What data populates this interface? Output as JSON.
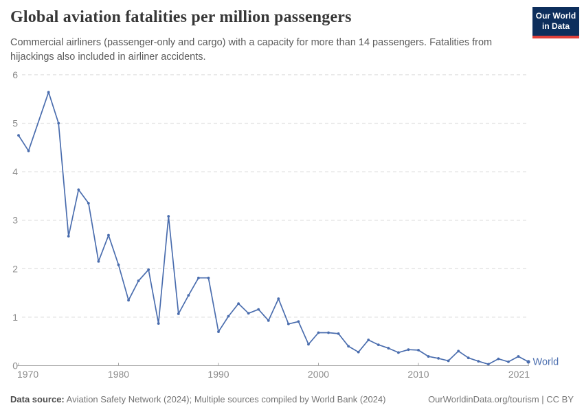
{
  "header": {
    "title": "Global aviation fatalities per million passengers",
    "subtitle": "Commercial airliners (passenger-only and cargo) with a capacity for more than 14 passengers. Fatalities from hijackings also included in airliner accidents.",
    "logo": {
      "line1": "Our World",
      "line2": "in Data"
    }
  },
  "chart_data": {
    "type": "line",
    "title": "Global aviation fatalities per million passengers",
    "xlabel": "",
    "ylabel": "",
    "ylim": [
      0,
      6
    ],
    "y_ticks": [
      0,
      1,
      2,
      3,
      4,
      5,
      6
    ],
    "x_ticks": [
      1970,
      1980,
      1990,
      2000,
      2010,
      2021
    ],
    "grid": "dashed-horizontal",
    "legend_position": "end-of-line",
    "entity_label": "World",
    "x": [
      1970,
      1971,
      1972,
      1973,
      1974,
      1975,
      1976,
      1977,
      1978,
      1979,
      1980,
      1981,
      1982,
      1983,
      1984,
      1985,
      1986,
      1987,
      1988,
      1989,
      1990,
      1991,
      1992,
      1993,
      1994,
      1995,
      1996,
      1997,
      1998,
      1999,
      2000,
      2001,
      2002,
      2003,
      2004,
      2005,
      2006,
      2007,
      2008,
      2009,
      2010,
      2011,
      2012,
      2013,
      2014,
      2015,
      2016,
      2017,
      2018,
      2019,
      2020,
      2021
    ],
    "series": [
      {
        "name": "World",
        "values": [
          4.75,
          4.43,
          null,
          5.64,
          5.0,
          2.67,
          3.63,
          3.35,
          2.15,
          2.69,
          2.08,
          1.35,
          1.75,
          1.98,
          0.87,
          3.08,
          1.07,
          1.45,
          1.81,
          1.81,
          0.7,
          1.02,
          1.28,
          1.08,
          1.16,
          0.93,
          1.38,
          0.86,
          0.91,
          0.44,
          0.68,
          0.68,
          0.66,
          0.4,
          0.28,
          0.53,
          0.43,
          0.36,
          0.27,
          0.33,
          0.32,
          0.19,
          0.15,
          0.1,
          0.3,
          0.16,
          0.09,
          0.03,
          0.14,
          0.08,
          0.19,
          0.08
        ]
      }
    ]
  },
  "footer": {
    "datasource_label": "Data source:",
    "datasource_text": " Aviation Safety Network (2024); Multiple sources compiled by World Bank (2024)",
    "credit": "OurWorldinData.org/tourism | CC BY"
  },
  "colors": {
    "line": "#4a6dae",
    "entity_label": "#4a6dae",
    "gridline": "#e2e2e2",
    "axis_line": "#a6a6a6",
    "axis_text": "#8c8c8c",
    "title_text": "#373737",
    "subtitle_text": "#5a5a5a",
    "footer_text": "#737373",
    "logo_bg": "#0d2e5c",
    "logo_bar": "#e0403a",
    "logo_text": "#ffffff"
  }
}
